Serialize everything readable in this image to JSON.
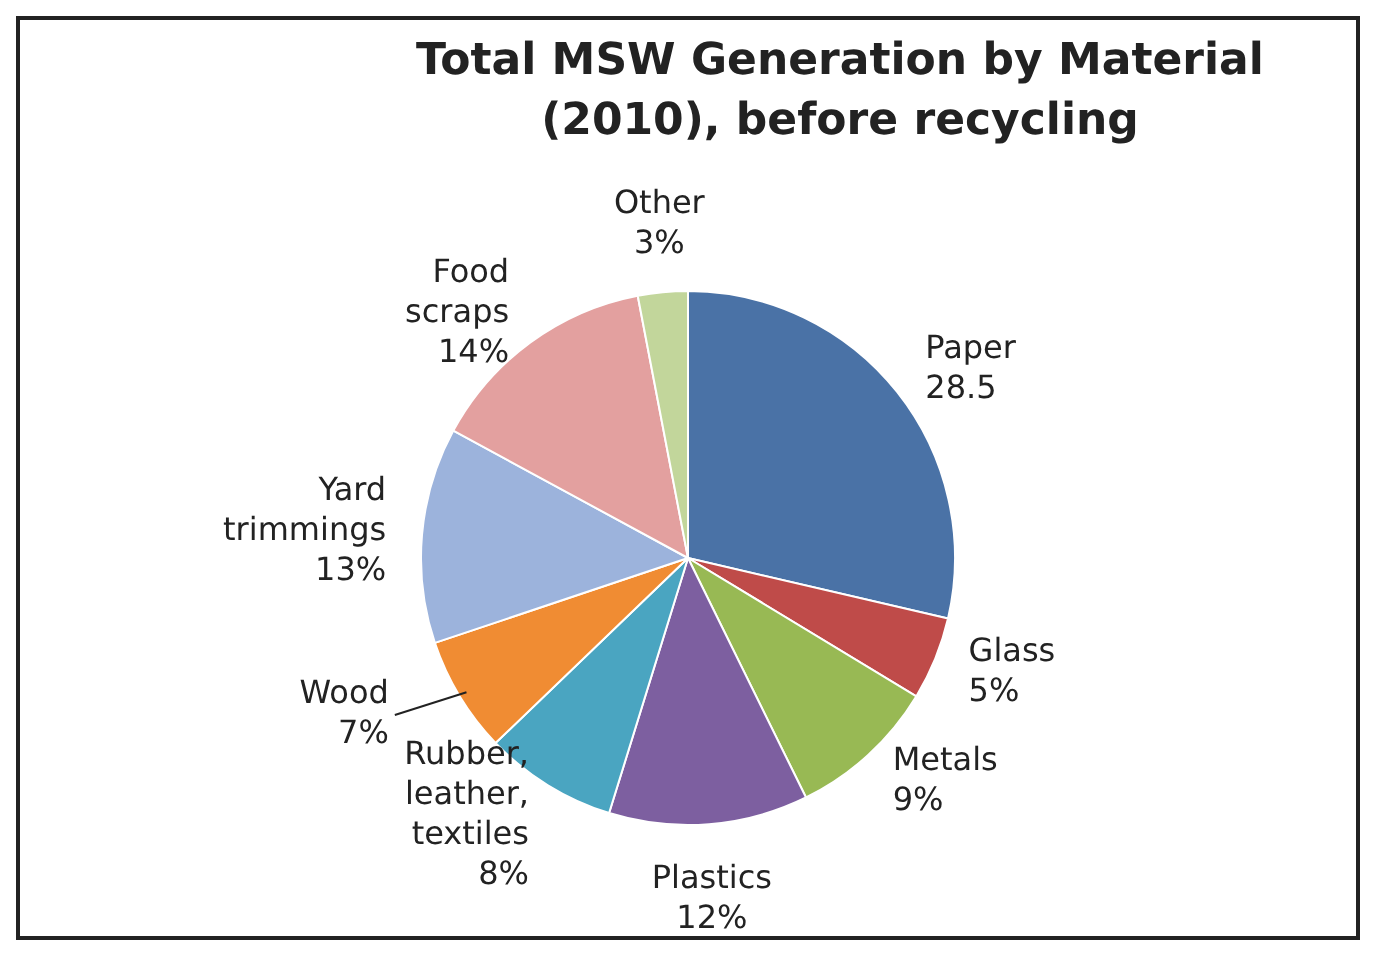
{
  "chart_data": {
    "type": "pie",
    "title": "Total MSW Generation by Material (2010), before recycling",
    "categories": [
      "Paper",
      "Glass",
      "Metals",
      "Plastics",
      "Rubber, leather, textiles",
      "Wood",
      "Yard trimmings",
      "Food scraps",
      "Other"
    ],
    "values": [
      28.5,
      5,
      9,
      12,
      8,
      7,
      13,
      14,
      3
    ],
    "value_labels": [
      "28.5",
      "5%",
      "9%",
      "12%",
      "8%",
      "7%",
      "13%",
      "14%",
      "3%"
    ],
    "colors": [
      "#4a72a6",
      "#bf4b49",
      "#98b954",
      "#7d5fa0",
      "#4aa5c1",
      "#f08c33",
      "#9cb3dc",
      "#e3a09f",
      "#c2d69b"
    ],
    "legend": false
  }
}
